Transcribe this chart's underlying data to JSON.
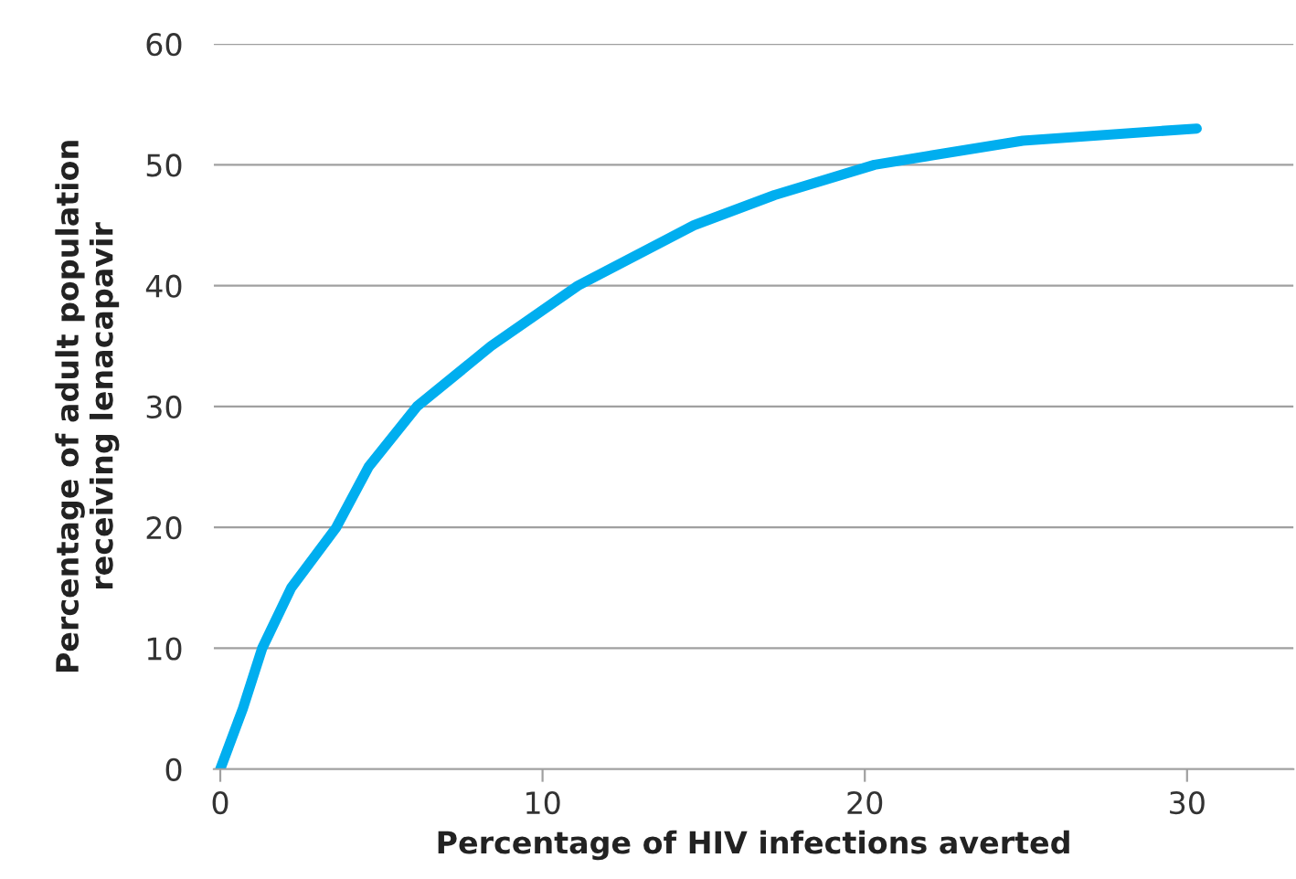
{
  "chart_data": {
    "type": "line",
    "xlabel": "Percentage of HIV infections averted",
    "ylabel": "Percentage of adult population\nreceiving lenacapavir",
    "series": [
      {
        "color": "#00aeef",
        "x": [
          0,
          0.7,
          1.3,
          2.2,
          3.6,
          4.6,
          6.1,
          8.4,
          11.1,
          14.7,
          17.2,
          20.3,
          24.9,
          30.3
        ],
        "values": [
          0,
          5,
          10,
          15,
          20,
          25,
          30,
          35,
          40,
          45,
          47.5,
          50,
          52,
          53
        ]
      }
    ],
    "xlim": [
      -0.2,
      33.3
    ],
    "ylim": [
      0,
      60
    ],
    "xticks": [
      0,
      10,
      20,
      30
    ],
    "yticks": [
      0,
      10,
      20,
      30,
      40,
      50,
      60
    ],
    "grid": "y",
    "legend": false,
    "marker": "none",
    "line_style": "solid"
  }
}
